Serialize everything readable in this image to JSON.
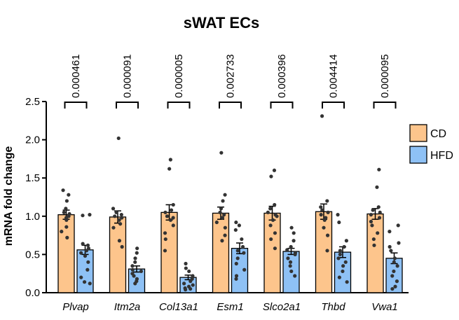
{
  "chart_data": {
    "type": "bar",
    "title": "sWAT ECs",
    "xlabel": "",
    "ylabel": "mRNA fold change",
    "ylim": [
      0,
      2.5
    ],
    "yticks": [
      "0.0",
      "0.5",
      "1.0",
      "1.5",
      "2.0",
      "2.5"
    ],
    "categories": [
      "Plvap",
      "Itm2a",
      "Col13a1",
      "Esm1",
      "Slco2a1",
      "Thbd",
      "Vwa1"
    ],
    "series": [
      {
        "name": "CD",
        "color": "#FDC58C",
        "values": [
          1.02,
          0.99,
          1.05,
          1.04,
          1.04,
          1.06,
          1.03
        ],
        "sem": [
          0.06,
          0.08,
          0.1,
          0.08,
          0.09,
          0.1,
          0.07
        ],
        "points": [
          [
            1.34,
            1.28,
            1.2,
            1.1,
            1.05,
            1.03,
            1.0,
            0.98,
            0.95,
            0.86,
            0.8,
            0.72
          ],
          [
            2.02,
            1.1,
            1.05,
            1.02,
            1.0,
            0.98,
            0.95,
            0.9,
            0.85,
            0.68,
            0.6
          ],
          [
            1.74,
            1.62,
            1.15,
            1.08,
            1.05,
            1.0,
            0.98,
            0.95,
            0.88,
            0.78,
            0.7,
            0.55
          ],
          [
            1.83,
            1.28,
            1.2,
            1.1,
            1.05,
            1.02,
            0.98,
            0.92,
            0.85,
            0.75,
            0.68
          ],
          [
            1.6,
            1.52,
            1.15,
            1.1,
            1.05,
            1.02,
            1.0,
            0.95,
            0.88,
            0.78,
            0.7,
            0.58
          ],
          [
            2.31,
            1.2,
            1.12,
            1.08,
            1.05,
            1.02,
            0.98,
            0.95,
            0.85,
            0.75,
            0.55
          ],
          [
            1.61,
            1.38,
            1.12,
            1.08,
            1.05,
            1.02,
            0.98,
            0.93,
            0.88,
            0.78,
            0.7,
            0.62
          ]
        ]
      },
      {
        "name": "HFD",
        "color": "#8EC1F5",
        "values": [
          0.56,
          0.31,
          0.2,
          0.58,
          0.54,
          0.53,
          0.45
        ],
        "sem": [
          0.06,
          0.04,
          0.03,
          0.07,
          0.04,
          0.07,
          0.07
        ],
        "points": [
          [
            1.02,
            1.01,
            0.64,
            0.62,
            0.58,
            0.55,
            0.52,
            0.48,
            0.4,
            0.3,
            0.2,
            0.14,
            0.12
          ],
          [
            0.58,
            0.52,
            0.45,
            0.4,
            0.35,
            0.3,
            0.28,
            0.25,
            0.22,
            0.18,
            0.15,
            0.12
          ],
          [
            0.38,
            0.32,
            0.28,
            0.22,
            0.18,
            0.15,
            0.12,
            0.1,
            0.08,
            0.06,
            0.05,
            0.04
          ],
          [
            0.92,
            0.88,
            0.82,
            0.7,
            0.6,
            0.55,
            0.52,
            0.45,
            0.38,
            0.3,
            0.22,
            0.18
          ],
          [
            0.85,
            0.78,
            0.68,
            0.6,
            0.56,
            0.52,
            0.5,
            0.45,
            0.4,
            0.35,
            0.28,
            0.22
          ],
          [
            1.02,
            0.92,
            0.68,
            0.6,
            0.55,
            0.5,
            0.45,
            0.4,
            0.35,
            0.28,
            0.2,
            0.14
          ],
          [
            0.88,
            0.8,
            0.65,
            0.6,
            0.55,
            0.45,
            0.4,
            0.35,
            0.28,
            0.22,
            0.15,
            0.08,
            0.05
          ]
        ]
      }
    ],
    "p_values": [
      "0.000461",
      "0.000091",
      "0.000005",
      "0.002733",
      "0.000396",
      "0.004414",
      "0.000095"
    ],
    "legend": {
      "position": "right",
      "entries": [
        "CD",
        "HFD"
      ]
    },
    "grid": false
  }
}
